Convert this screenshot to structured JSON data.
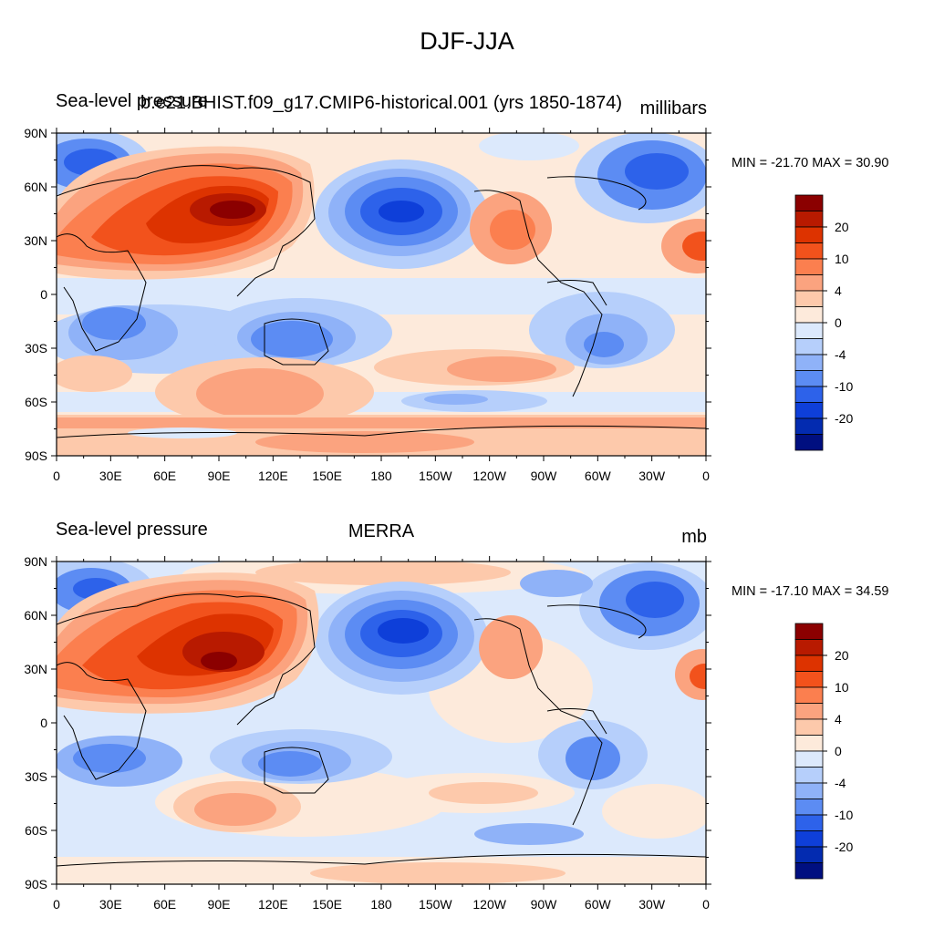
{
  "title": "DJF-JJA",
  "panels": [
    {
      "left_label": "Sea-level pressure",
      "center_label": "b.e21.BHIST.f09_g17.CMIP6-historical.001 (yrs 1850-1874)",
      "right_label": "millibars",
      "min_max": "MIN = -21.70 MAX =  30.90"
    },
    {
      "left_label": "Sea-level pressure",
      "center_label": "MERRA",
      "right_label": "mb",
      "min_max": "MIN = -17.10 MAX =  34.59"
    }
  ],
  "lat_ticks": [
    "90N",
    "60N",
    "30N",
    "0",
    "30S",
    "60S",
    "90S"
  ],
  "lon_ticks": [
    "0",
    "30E",
    "60E",
    "90E",
    "120E",
    "150E",
    "180",
    "150W",
    "120W",
    "90W",
    "60W",
    "30W",
    "0"
  ],
  "colorbar": {
    "labels": [
      "20",
      "10",
      "4",
      "0",
      "-4",
      "-10",
      "-20"
    ],
    "colors": [
      "#8b0000",
      "#b81a00",
      "#dd3300",
      "#f2521c",
      "#fb7f4f",
      "#fba37f",
      "#fdc9ab",
      "#fdeadb",
      "#dce9fc",
      "#b6cffb",
      "#8fb2f8",
      "#5c8cf3",
      "#2d62ea",
      "#0e3fd9",
      "#032bb0",
      "#000f80"
    ]
  }
}
